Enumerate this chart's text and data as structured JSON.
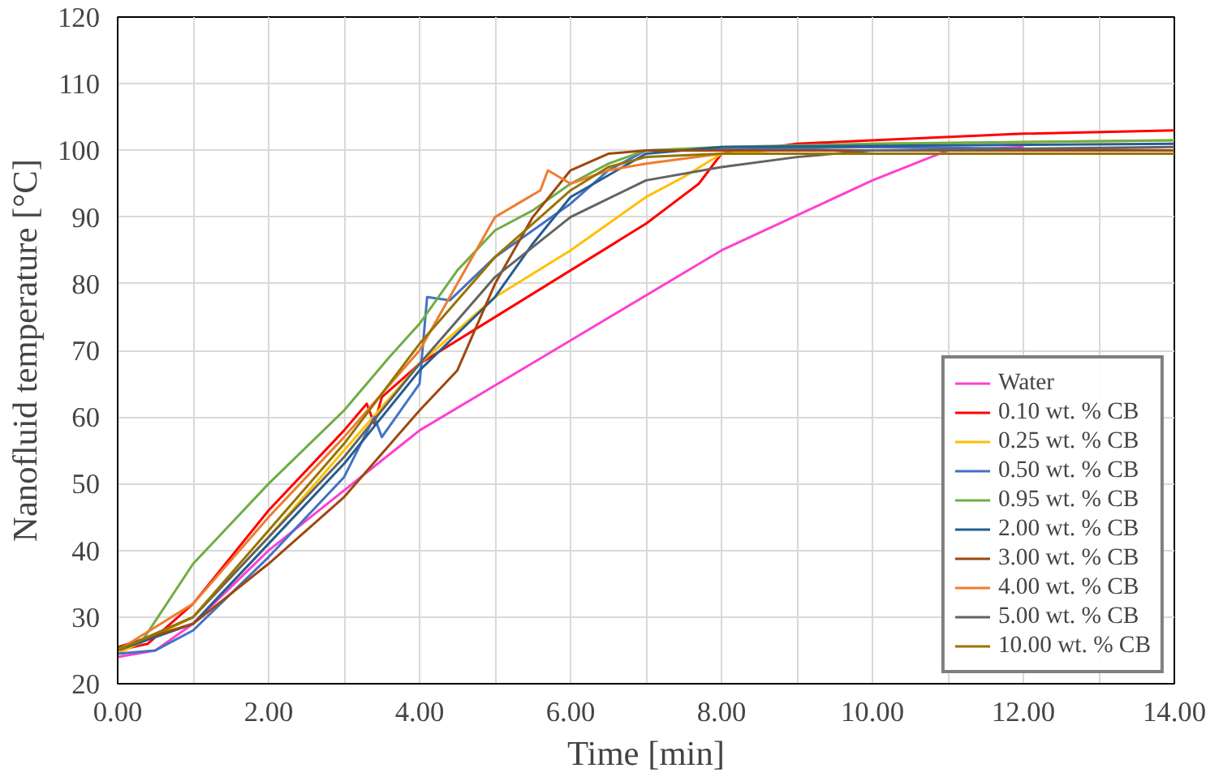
{
  "chart_data": {
    "type": "line",
    "xlabel": "Time [min]",
    "ylabel": "Nanofluid temperature [°C]",
    "xlim": [
      0,
      14
    ],
    "ylim": [
      20,
      120
    ],
    "xticks": [
      {
        "value": 0,
        "label": "0.00"
      },
      {
        "value": 1,
        "label": null
      },
      {
        "value": 2,
        "label": "2.00"
      },
      {
        "value": 3,
        "label": null
      },
      {
        "value": 4,
        "label": "4.00"
      },
      {
        "value": 5,
        "label": null
      },
      {
        "value": 6,
        "label": "6.00"
      },
      {
        "value": 7,
        "label": null
      },
      {
        "value": 8,
        "label": "8.00"
      },
      {
        "value": 9,
        "label": null
      },
      {
        "value": 10,
        "label": "10.00"
      },
      {
        "value": 11,
        "label": null
      },
      {
        "value": 12,
        "label": "12.00"
      },
      {
        "value": 13,
        "label": null
      },
      {
        "value": 14,
        "label": "14.00"
      }
    ],
    "yticks": [
      20,
      30,
      40,
      50,
      60,
      70,
      80,
      90,
      100,
      110,
      120
    ],
    "grid": true,
    "legend": "bottom right",
    "marker": "none",
    "line_style": "solid",
    "series": [
      {
        "name": "Water",
        "color": "#ff40d0",
        "x": [
          0,
          0.5,
          1,
          2,
          4,
          6,
          8,
          10,
          11,
          12
        ],
        "values": [
          24,
          25,
          29,
          40,
          58,
          71.5,
          85,
          95.5,
          100,
          100.5
        ]
      },
      {
        "name": "0.10 wt. % CB",
        "color": "#ff0000",
        "x": [
          0,
          0.4,
          1,
          2,
          3,
          3.3,
          3.4,
          3.5,
          4,
          5,
          6,
          7,
          7.7,
          8,
          9,
          10,
          12,
          14
        ],
        "values": [
          25,
          26,
          32,
          46,
          58,
          62,
          59,
          63,
          68,
          75,
          82,
          89,
          95,
          99.5,
          101,
          101.5,
          102.5,
          103
        ]
      },
      {
        "name": "0.25 wt. % CB",
        "color": "#ffc000",
        "x": [
          0,
          1,
          2,
          3,
          4,
          5,
          6,
          7,
          7.5,
          8,
          10,
          14
        ],
        "values": [
          24.5,
          30,
          42,
          55,
          68,
          78,
          85,
          93,
          96,
          99.5,
          101,
          101.5
        ]
      },
      {
        "name": "0.50 wt. % CB",
        "color": "#4472c4",
        "x": [
          0,
          0.5,
          1,
          2,
          3,
          3.4,
          3.5,
          4,
          4.1,
          4.4,
          5,
          6,
          6.5,
          7,
          10,
          14
        ],
        "values": [
          24.5,
          25,
          28,
          39,
          51,
          60,
          57,
          65,
          78,
          77.5,
          84,
          92,
          97,
          100,
          100.5,
          100
        ]
      },
      {
        "name": "0.95 wt. % CB",
        "color": "#70ad47",
        "x": [
          0,
          0.3,
          1,
          2,
          3,
          3.6,
          4,
          4.5,
          5,
          5.5,
          6,
          6.5,
          7,
          8,
          10,
          14
        ],
        "values": [
          25.5,
          26,
          38,
          50,
          61,
          69,
          74,
          82,
          88,
          91,
          95,
          98,
          100,
          100.5,
          101,
          101.5
        ]
      },
      {
        "name": "2.00 wt. % CB",
        "color": "#255e91",
        "x": [
          0,
          1,
          2,
          3,
          4,
          5,
          5.5,
          6,
          7,
          8,
          14
        ],
        "values": [
          25,
          29,
          41,
          53,
          67,
          78,
          86,
          93,
          99.5,
          100.5,
          101
        ]
      },
      {
        "name": "3.00 wt. % CB",
        "color": "#9e480e",
        "x": [
          0,
          1,
          2,
          3,
          4,
          4.5,
          5,
          5.5,
          6,
          6.5,
          7,
          14
        ],
        "values": [
          25.5,
          29,
          38,
          48,
          61,
          67,
          80,
          90,
          97,
          99.5,
          100,
          100
        ]
      },
      {
        "name": "4.00 wt. % CB",
        "color": "#ed7d31",
        "x": [
          0,
          1,
          2,
          3,
          4,
          4.5,
          5,
          5.3,
          5.6,
          5.7,
          6,
          6.5,
          7,
          8,
          14
        ],
        "values": [
          25,
          32,
          45,
          57,
          70,
          80,
          90,
          92,
          94,
          97,
          95,
          97,
          98,
          99.5,
          99.5
        ]
      },
      {
        "name": "5.00 wt. % CB",
        "color": "#636363",
        "x": [
          0,
          1,
          2,
          3,
          4,
          5,
          6,
          7,
          8,
          9,
          10,
          14
        ],
        "values": [
          25,
          30,
          42,
          54,
          68,
          81,
          90,
          95.5,
          97.5,
          99,
          100,
          100.5
        ]
      },
      {
        "name": "10.00 wt. % CB",
        "color": "#997300",
        "x": [
          0,
          1,
          2,
          3,
          4,
          5,
          6,
          6.5,
          7,
          8,
          14
        ],
        "values": [
          25,
          30,
          43,
          56,
          71,
          84,
          94,
          97.5,
          99,
          99.5,
          99.5
        ]
      }
    ]
  }
}
